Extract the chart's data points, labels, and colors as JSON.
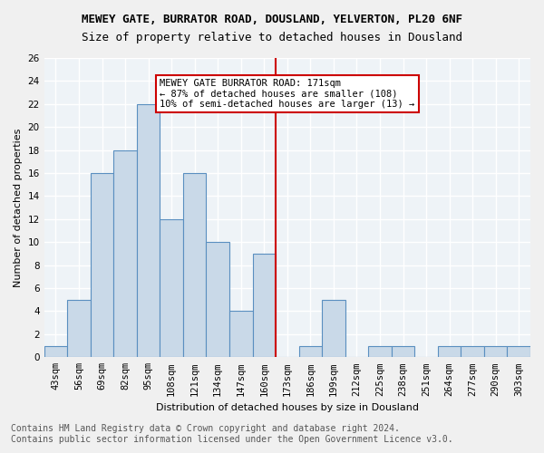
{
  "title": "MEWEY GATE, BURRATOR ROAD, DOUSLAND, YELVERTON, PL20 6NF",
  "subtitle": "Size of property relative to detached houses in Dousland",
  "xlabel": "Distribution of detached houses by size in Dousland",
  "ylabel": "Number of detached properties",
  "footer_line1": "Contains HM Land Registry data © Crown copyright and database right 2024.",
  "footer_line2": "Contains public sector information licensed under the Open Government Licence v3.0.",
  "bin_labels": [
    "43sqm",
    "56sqm",
    "69sqm",
    "82sqm",
    "95sqm",
    "108sqm",
    "121sqm",
    "134sqm",
    "147sqm",
    "160sqm",
    "173sqm",
    "186sqm",
    "199sqm",
    "212sqm",
    "225sqm",
    "238sqm",
    "251sqm",
    "264sqm",
    "277sqm",
    "290sqm",
    "303sqm"
  ],
  "bar_values": [
    1,
    5,
    16,
    18,
    22,
    12,
    16,
    10,
    4,
    9,
    0,
    1,
    5,
    0,
    1,
    1,
    0,
    1,
    1,
    1,
    1
  ],
  "bar_color": "#c9d9e8",
  "bar_edge_color": "#5a8fc0",
  "reference_line_x": 10,
  "reference_line_label": "MEWEY GATE BURRATOR ROAD: 171sqm",
  "annotation_line1": "MEWEY GATE BURRATOR ROAD: 171sqm",
  "annotation_line2": "← 87% of detached houses are smaller (108)",
  "annotation_line3": "10% of semi-detached houses are larger (13) →",
  "ylim": [
    0,
    26
  ],
  "yticks": [
    0,
    2,
    4,
    6,
    8,
    10,
    12,
    14,
    16,
    18,
    20,
    22,
    24,
    26
  ],
  "annotation_box_color": "#ffffff",
  "annotation_box_edge": "#cc0000",
  "ref_line_color": "#cc0000",
  "bg_color": "#eef3f7",
  "grid_color": "#ffffff",
  "title_fontsize": 9,
  "subtitle_fontsize": 9,
  "axis_label_fontsize": 8,
  "tick_fontsize": 7.5,
  "annotation_fontsize": 7.5,
  "footer_fontsize": 7
}
